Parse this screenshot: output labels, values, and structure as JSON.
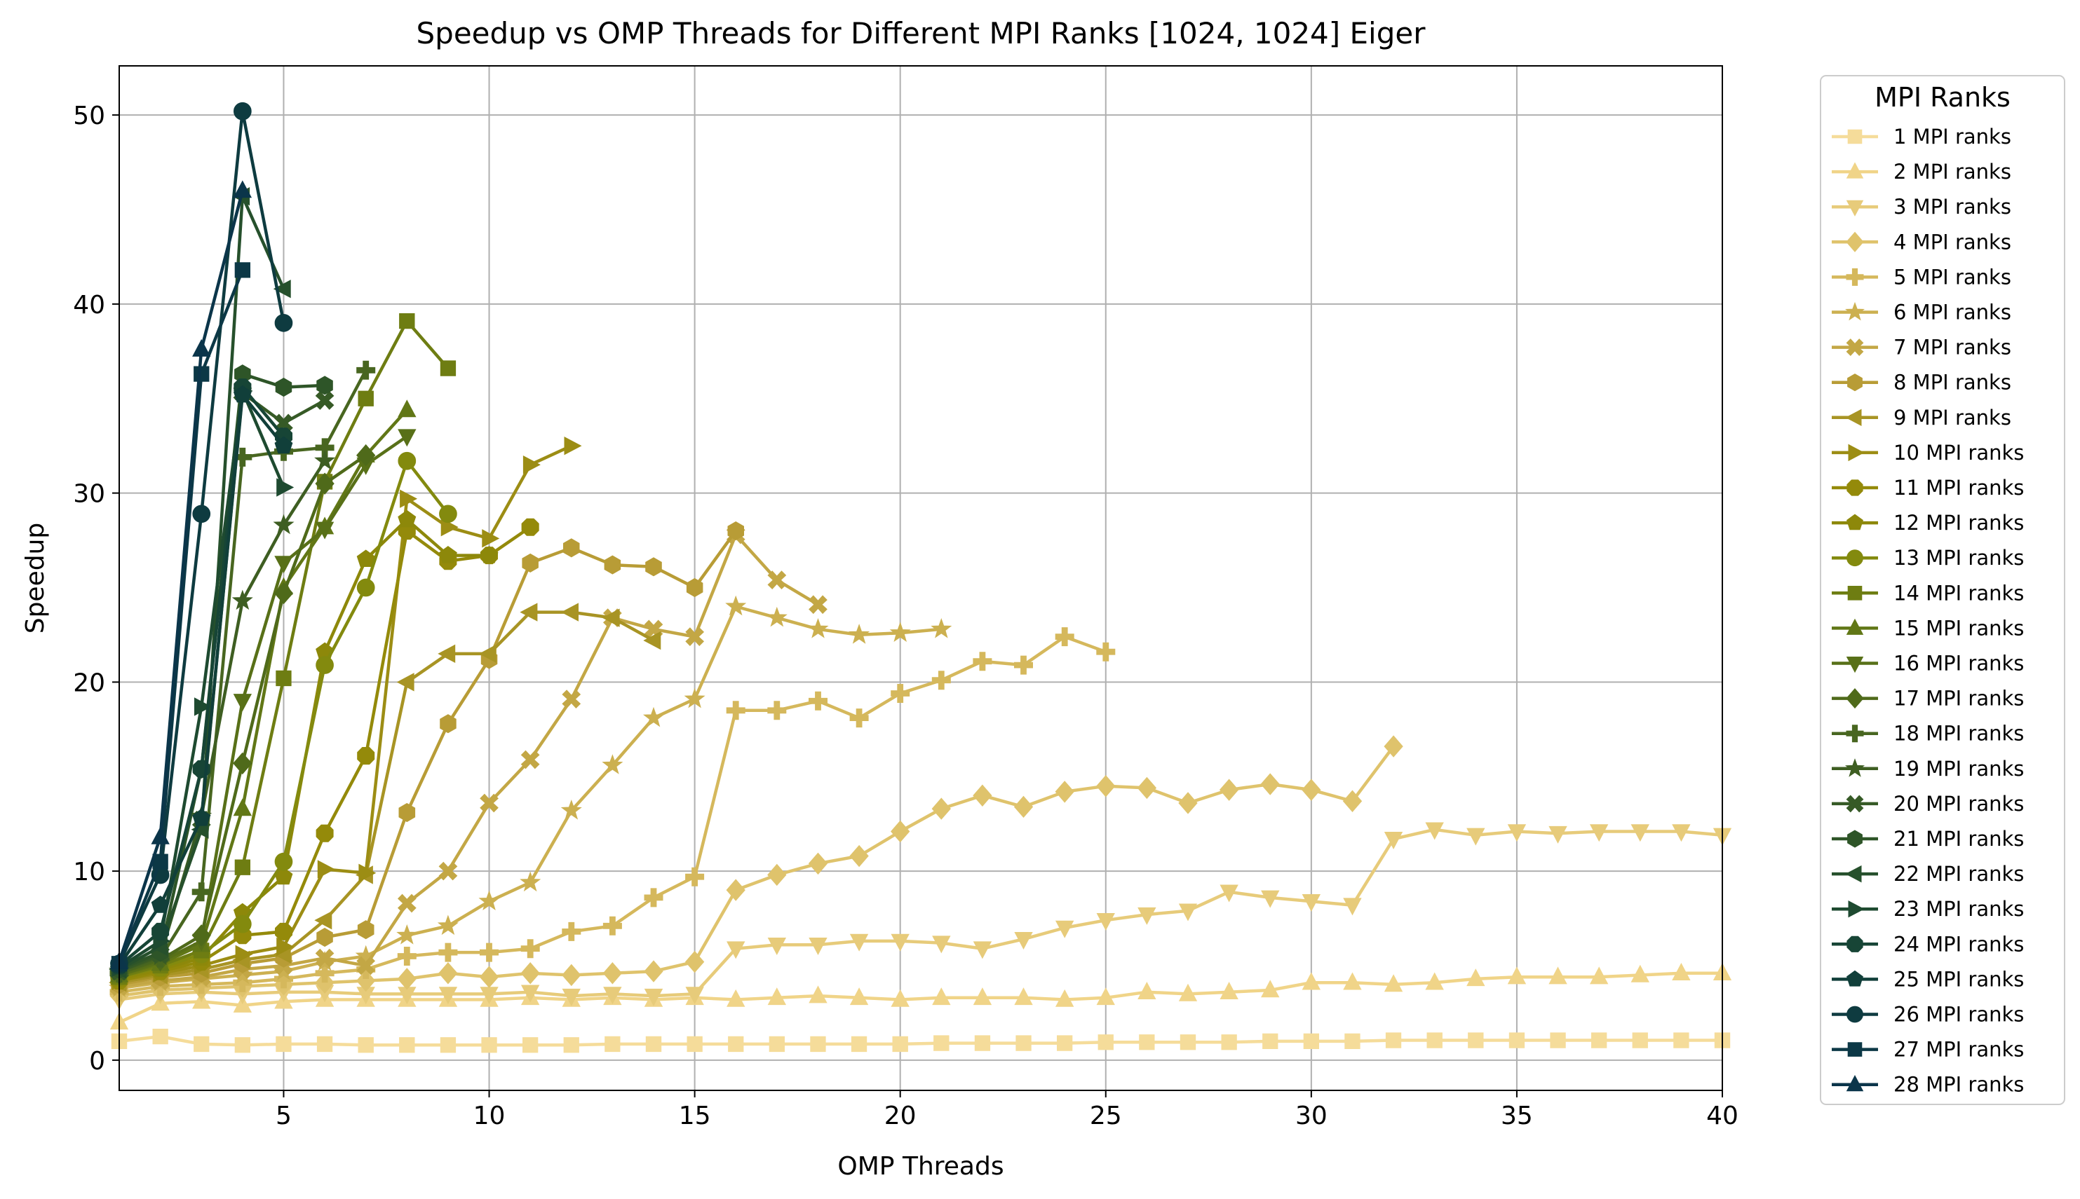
{
  "chart_data": {
    "type": "line",
    "title": "Speedup vs OMP Threads for Different MPI Ranks [1024, 1024] Eiger",
    "xlabel": "OMP Threads",
    "ylabel": "Speedup",
    "xlim": [
      1,
      40
    ],
    "ylim": [
      -1.6,
      52.6
    ],
    "xticks": [
      5,
      10,
      15,
      20,
      25,
      30,
      35,
      40
    ],
    "yticks": [
      0,
      10,
      20,
      30,
      40,
      50
    ],
    "grid": true,
    "legend": {
      "title": "MPI Ranks",
      "placement": "outside right"
    },
    "series": [
      {
        "name": "1 MPI ranks",
        "color": "#f5dc9a",
        "marker": "square",
        "x": [
          1,
          2,
          3,
          4,
          5,
          6,
          7,
          8,
          9,
          10,
          11,
          12,
          13,
          14,
          15,
          16,
          17,
          18,
          19,
          20,
          21,
          22,
          23,
          24,
          25,
          26,
          27,
          28,
          29,
          30,
          31,
          32,
          33,
          34,
          35,
          36,
          37,
          38,
          39,
          40
        ],
        "y": [
          1.0,
          1.25,
          0.85,
          0.8,
          0.85,
          0.85,
          0.8,
          0.8,
          0.8,
          0.8,
          0.8,
          0.8,
          0.85,
          0.85,
          0.85,
          0.85,
          0.85,
          0.85,
          0.85,
          0.85,
          0.9,
          0.9,
          0.9,
          0.9,
          0.95,
          0.95,
          0.95,
          0.95,
          1.0,
          1.0,
          1.0,
          1.05,
          1.05,
          1.05,
          1.05,
          1.05,
          1.05,
          1.05,
          1.05,
          1.05
        ]
      },
      {
        "name": "2 MPI ranks",
        "color": "#f0d488",
        "marker": "triangle-up",
        "x": [
          1,
          2,
          3,
          4,
          5,
          6,
          7,
          8,
          9,
          10,
          11,
          12,
          13,
          14,
          15,
          16,
          17,
          18,
          19,
          20,
          21,
          22,
          23,
          24,
          25,
          26,
          27,
          28,
          29,
          30,
          31,
          32,
          33,
          34,
          35,
          36,
          37,
          38,
          39,
          40
        ],
        "y": [
          2.0,
          3.0,
          3.1,
          2.9,
          3.1,
          3.2,
          3.2,
          3.2,
          3.2,
          3.2,
          3.3,
          3.2,
          3.3,
          3.2,
          3.3,
          3.2,
          3.3,
          3.4,
          3.3,
          3.2,
          3.3,
          3.3,
          3.3,
          3.2,
          3.3,
          3.6,
          3.5,
          3.6,
          3.7,
          4.1,
          4.1,
          4.0,
          4.1,
          4.3,
          4.4,
          4.4,
          4.4,
          4.5,
          4.6,
          4.6
        ]
      },
      {
        "name": "3 MPI ranks",
        "color": "#e7cb7a",
        "marker": "triangle-down",
        "x": [
          1,
          2,
          3,
          4,
          5,
          6,
          7,
          8,
          9,
          10,
          11,
          12,
          13,
          14,
          15,
          16,
          17,
          18,
          19,
          20,
          21,
          22,
          23,
          24,
          25,
          26,
          27,
          28,
          29,
          30,
          31,
          32,
          33,
          34,
          35,
          36,
          37,
          38,
          39,
          40
        ],
        "y": [
          3.2,
          3.5,
          3.6,
          3.5,
          3.6,
          3.6,
          3.5,
          3.5,
          3.5,
          3.5,
          3.6,
          3.4,
          3.5,
          3.4,
          3.5,
          5.9,
          6.1,
          6.1,
          6.3,
          6.3,
          6.2,
          5.9,
          6.4,
          7.0,
          7.4,
          7.7,
          7.9,
          8.9,
          8.6,
          8.4,
          8.2,
          11.7,
          12.2,
          11.9,
          12.1,
          12.0,
          12.1,
          12.1,
          12.1,
          11.9
        ]
      },
      {
        "name": "4 MPI ranks",
        "color": "#dfc36c",
        "marker": "diamond",
        "x": [
          1,
          2,
          3,
          4,
          5,
          6,
          7,
          8,
          9,
          10,
          11,
          12,
          13,
          14,
          15,
          16,
          17,
          18,
          19,
          20,
          21,
          22,
          23,
          24,
          25,
          26,
          27,
          28,
          29,
          30,
          31,
          32
        ],
        "y": [
          3.4,
          3.7,
          3.8,
          3.9,
          4.0,
          4.1,
          4.2,
          4.3,
          4.6,
          4.4,
          4.6,
          4.5,
          4.6,
          4.7,
          5.2,
          9.0,
          9.8,
          10.4,
          10.8,
          12.1,
          13.3,
          14.0,
          13.4,
          14.2,
          14.5,
          14.4,
          13.6,
          14.3,
          14.6,
          14.3,
          13.7,
          16.6
        ]
      },
      {
        "name": "5 MPI ranks",
        "color": "#d5b85c",
        "marker": "plus",
        "x": [
          1,
          2,
          3,
          4,
          5,
          6,
          7,
          8,
          9,
          10,
          11,
          12,
          13,
          14,
          15,
          16,
          17,
          18,
          19,
          20,
          21,
          22,
          23,
          24,
          25
        ],
        "y": [
          3.6,
          3.9,
          4.0,
          4.1,
          4.3,
          4.6,
          4.8,
          5.5,
          5.7,
          5.7,
          5.9,
          6.8,
          7.1,
          8.6,
          9.7,
          18.5,
          18.5,
          19.0,
          18.1,
          19.4,
          20.1,
          21.1,
          20.9,
          22.4,
          21.6
        ]
      },
      {
        "name": "6 MPI ranks",
        "color": "#ccb050",
        "marker": "star",
        "x": [
          1,
          2,
          3,
          4,
          5,
          6,
          7,
          8,
          9,
          10,
          11,
          12,
          13,
          14,
          15,
          16,
          17,
          18,
          19,
          20,
          21
        ],
        "y": [
          3.8,
          4.1,
          4.3,
          4.5,
          4.7,
          5.2,
          5.5,
          6.6,
          7.1,
          8.4,
          9.4,
          13.2,
          15.6,
          18.1,
          19.1,
          24.0,
          23.4,
          22.8,
          22.5,
          22.6,
          22.8
        ]
      },
      {
        "name": "7 MPI ranks",
        "color": "#c3a745",
        "marker": "x-filled",
        "x": [
          1,
          2,
          3,
          4,
          5,
          6,
          7,
          8,
          9,
          10,
          11,
          12,
          13,
          14,
          15,
          16,
          17,
          18
        ],
        "y": [
          3.9,
          4.2,
          4.4,
          4.8,
          5.0,
          5.4,
          5.0,
          8.3,
          10.0,
          13.6,
          15.9,
          19.1,
          23.4,
          22.8,
          22.4,
          27.8,
          25.4,
          24.1
        ]
      },
      {
        "name": "8 MPI ranks",
        "color": "#b89c36",
        "marker": "hexagon",
        "x": [
          1,
          2,
          3,
          4,
          5,
          6,
          7,
          8,
          9,
          10,
          11,
          12,
          13,
          14,
          15,
          16
        ],
        "y": [
          4.0,
          4.4,
          4.6,
          5.1,
          5.4,
          6.5,
          6.9,
          13.1,
          17.8,
          21.2,
          26.3,
          27.1,
          26.2,
          26.1,
          25.0,
          28.0
        ]
      },
      {
        "name": "9 MPI ranks",
        "color": "#a89424",
        "marker": "triangle-left",
        "x": [
          1,
          2,
          3,
          4,
          5,
          6,
          7,
          8,
          9,
          10,
          11,
          12,
          13,
          14
        ],
        "y": [
          4.1,
          4.5,
          4.8,
          5.3,
          5.6,
          7.4,
          9.8,
          20.0,
          21.5,
          21.5,
          23.7,
          23.7,
          23.4,
          22.2
        ]
      },
      {
        "name": "10 MPI ranks",
        "color": "#9c8d14",
        "marker": "triangle-right",
        "x": [
          1,
          2,
          3,
          4,
          5,
          6,
          7,
          8,
          9,
          10,
          11,
          12
        ],
        "y": [
          4.2,
          4.6,
          5.0,
          5.6,
          6.0,
          10.1,
          9.9,
          29.7,
          28.2,
          27.6,
          31.5,
          32.5
        ]
      },
      {
        "name": "11 MPI ranks",
        "color": "#948a0a",
        "marker": "octagon",
        "x": [
          1,
          2,
          3,
          4,
          5,
          6,
          7,
          8,
          9,
          10,
          11
        ],
        "y": [
          4.2,
          4.7,
          5.2,
          6.6,
          6.8,
          12.0,
          16.1,
          28.0,
          26.4,
          26.7,
          28.2
        ]
      },
      {
        "name": "12 MPI ranks",
        "color": "#8d880a",
        "marker": "pentagon",
        "x": [
          1,
          2,
          3,
          4,
          5,
          6,
          7,
          8,
          9,
          10
        ],
        "y": [
          4.3,
          4.8,
          5.4,
          7.8,
          9.7,
          21.6,
          26.5,
          28.6,
          26.7,
          26.7
        ]
      },
      {
        "name": "13 MPI ranks",
        "color": "#838a0e",
        "marker": "circle",
        "x": [
          1,
          2,
          3,
          4,
          5,
          6,
          7,
          8,
          9
        ],
        "y": [
          4.4,
          4.9,
          5.6,
          7.2,
          10.5,
          20.9,
          25.0,
          31.7,
          28.9
        ]
      },
      {
        "name": "14 MPI ranks",
        "color": "#6e7d12",
        "marker": "square",
        "x": [
          1,
          2,
          3,
          4,
          5,
          6,
          7,
          8,
          9
        ],
        "y": [
          4.4,
          5.0,
          5.8,
          10.2,
          20.2,
          30.6,
          35.0,
          39.1,
          36.6
        ]
      },
      {
        "name": "15 MPI ranks",
        "color": "#617716",
        "marker": "triangle-up",
        "x": [
          1,
          2,
          3,
          4,
          5,
          6,
          7,
          8
        ],
        "y": [
          4.5,
          5.1,
          6.1,
          13.3,
          25.0,
          28.2,
          32.0,
          34.4
        ]
      },
      {
        "name": "16 MPI ranks",
        "color": "#587018",
        "marker": "triangle-down",
        "x": [
          1,
          2,
          3,
          4,
          5,
          6,
          7,
          8
        ],
        "y": [
          4.5,
          5.2,
          6.3,
          19.0,
          26.3,
          28.1,
          31.5,
          33.0
        ]
      },
      {
        "name": "17 MPI ranks",
        "color": "#4f6a1a",
        "marker": "diamond",
        "x": [
          1,
          2,
          3,
          4,
          5,
          6,
          7
        ],
        "y": [
          4.6,
          5.3,
          6.6,
          15.7,
          24.7,
          30.5,
          32.0
        ]
      },
      {
        "name": "18 MPI ranks",
        "color": "#486620",
        "marker": "plus",
        "x": [
          1,
          2,
          3,
          4,
          5,
          6,
          7
        ],
        "y": [
          4.6,
          5.4,
          8.9,
          31.9,
          32.2,
          32.4,
          36.5
        ]
      },
      {
        "name": "19 MPI ranks",
        "color": "#3e5e22",
        "marker": "star",
        "x": [
          1,
          2,
          3,
          4,
          5,
          6
        ],
        "y": [
          4.7,
          5.5,
          12.9,
          24.3,
          28.3,
          31.7
        ]
      },
      {
        "name": "20 MPI ranks",
        "color": "#365a26",
        "marker": "x-filled",
        "x": [
          1,
          2,
          3,
          4,
          5,
          6
        ],
        "y": [
          4.7,
          5.6,
          12.7,
          35.3,
          33.7,
          34.9
        ]
      },
      {
        "name": "21 MPI ranks",
        "color": "#2e5528",
        "marker": "hexagon",
        "x": [
          1,
          2,
          3,
          4,
          5,
          6
        ],
        "y": [
          4.8,
          5.7,
          15.4,
          36.3,
          35.6,
          35.7
        ]
      },
      {
        "name": "22 MPI ranks",
        "color": "#26502c",
        "marker": "triangle-left",
        "x": [
          1,
          2,
          3,
          4,
          5
        ],
        "y": [
          4.8,
          6.0,
          12.2,
          45.7,
          40.8
        ]
      },
      {
        "name": "23 MPI ranks",
        "color": "#1e4a30",
        "marker": "triangle-right",
        "x": [
          1,
          2,
          3,
          4,
          5
        ],
        "y": [
          4.9,
          6.3,
          18.7,
          35.4,
          30.3
        ]
      },
      {
        "name": "24 MPI ranks",
        "color": "#174536",
        "marker": "octagon",
        "x": [
          1,
          2,
          3,
          4,
          5
        ],
        "y": [
          5.0,
          6.8,
          15.4,
          35.6,
          33.0
        ]
      },
      {
        "name": "25 MPI ranks",
        "color": "#113f3a",
        "marker": "pentagon",
        "x": [
          1,
          2,
          3,
          4,
          5
        ],
        "y": [
          5.0,
          8.2,
          12.8,
          35.2,
          32.5
        ]
      },
      {
        "name": "26 MPI ranks",
        "color": "#0e3b40",
        "marker": "circle",
        "x": [
          1,
          2,
          3,
          4,
          5
        ],
        "y": [
          5.1,
          9.8,
          28.9,
          50.2,
          39.0
        ]
      },
      {
        "name": "27 MPI ranks",
        "color": "#0c3846",
        "marker": "square",
        "x": [
          1,
          2,
          3,
          4
        ],
        "y": [
          5.1,
          10.5,
          36.3,
          41.8
        ]
      },
      {
        "name": "28 MPI ranks",
        "color": "#0b354a",
        "marker": "triangle-up",
        "x": [
          1,
          2,
          3,
          4
        ],
        "y": [
          5.2,
          11.8,
          37.6,
          46.0
        ]
      }
    ]
  }
}
